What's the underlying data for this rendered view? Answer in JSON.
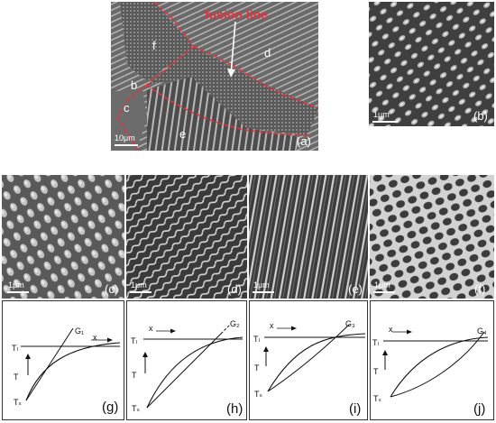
{
  "figure": {
    "panel_a": {
      "letter": "(a)",
      "fusion_line": "fusion line",
      "regions": {
        "b": "b",
        "c": "c",
        "d": "d",
        "e": "e",
        "f": "f"
      },
      "scale": "10μm",
      "line_color": "#e8313a"
    },
    "panel_b": {
      "letter": "(b)",
      "scale": "1μm"
    },
    "panel_c": {
      "letter": "(c)",
      "scale": "1μm"
    },
    "panel_d": {
      "letter": "(d)",
      "scale": "1μm"
    },
    "panel_e": {
      "letter": "(e)",
      "scale": "1μm"
    },
    "panel_f": {
      "letter": "(f)",
      "scale": "1μm"
    },
    "graph_g": {
      "letter": "(g)",
      "gradient": "G₁",
      "tl": "Tₗ",
      "t": "T",
      "ts": "Tₛ",
      "x": "x"
    },
    "graph_h": {
      "letter": "(h)",
      "gradient": "G₂",
      "tl": "Tₗ",
      "t": "T",
      "ts": "Tₛ",
      "x": "x"
    },
    "graph_i": {
      "letter": "(i)",
      "gradient": "G₃",
      "tl": "Tₗ",
      "t": "T",
      "ts": "Tₛ",
      "x": "x"
    },
    "graph_j": {
      "letter": "(j)",
      "gradient": "G₄",
      "tl": "Tₗ",
      "t": "T",
      "ts": "Tₛ",
      "x": "x"
    }
  }
}
